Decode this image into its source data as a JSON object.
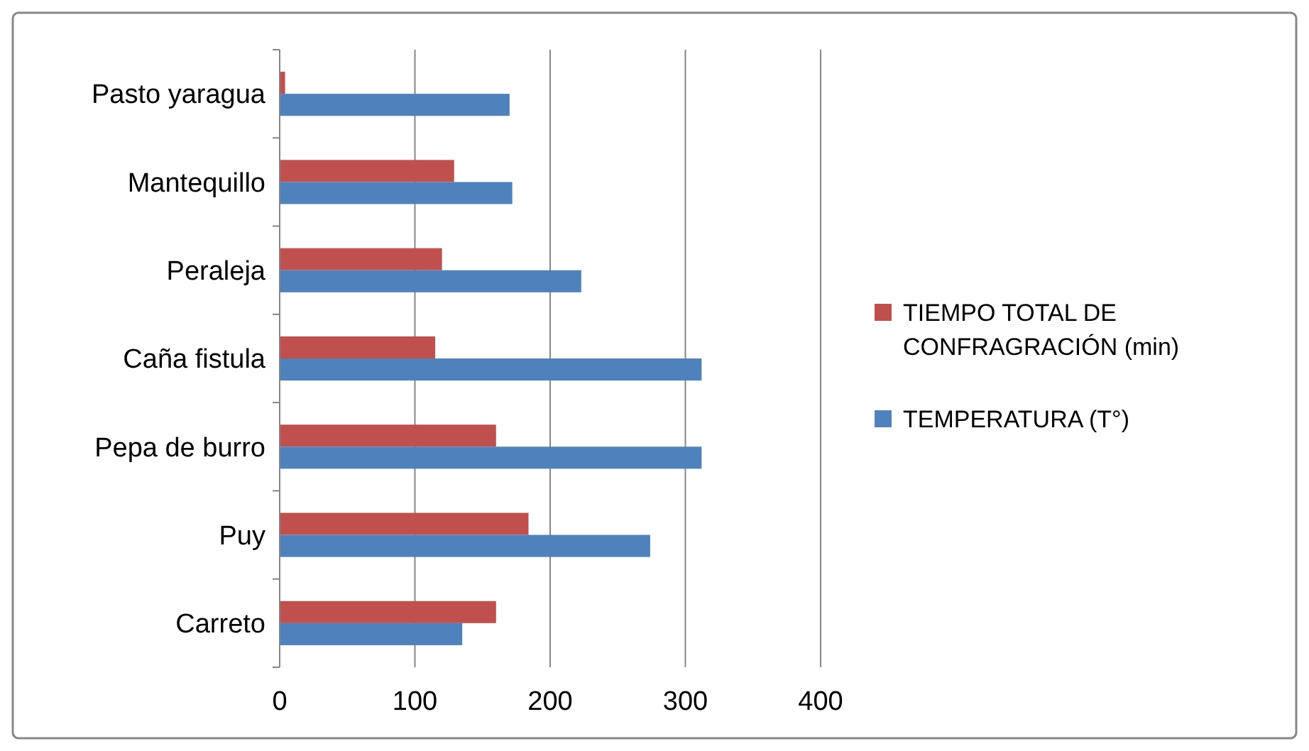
{
  "chart_data": {
    "type": "bar",
    "orientation": "horizontal",
    "categories": [
      "Pasto yaragua",
      "Mantequillo",
      "Peraleja",
      "Caña fistula",
      "Pepa de burro",
      "Puy",
      "Carreto"
    ],
    "series": [
      {
        "name": "TIEMPO TOTAL DE CONFRAGRACIÓN (min)",
        "color": "#c0504d",
        "values": [
          4,
          129,
          120,
          115,
          160,
          184,
          160
        ]
      },
      {
        "name": "TEMPERATURA (T°)",
        "color": "#4f81bd",
        "values": [
          170,
          172,
          223,
          312,
          312,
          274,
          135
        ]
      }
    ],
    "xlim": [
      0,
      400
    ],
    "xticks": [
      0,
      100,
      200,
      300,
      400
    ],
    "grid": "x",
    "legend": "right"
  }
}
